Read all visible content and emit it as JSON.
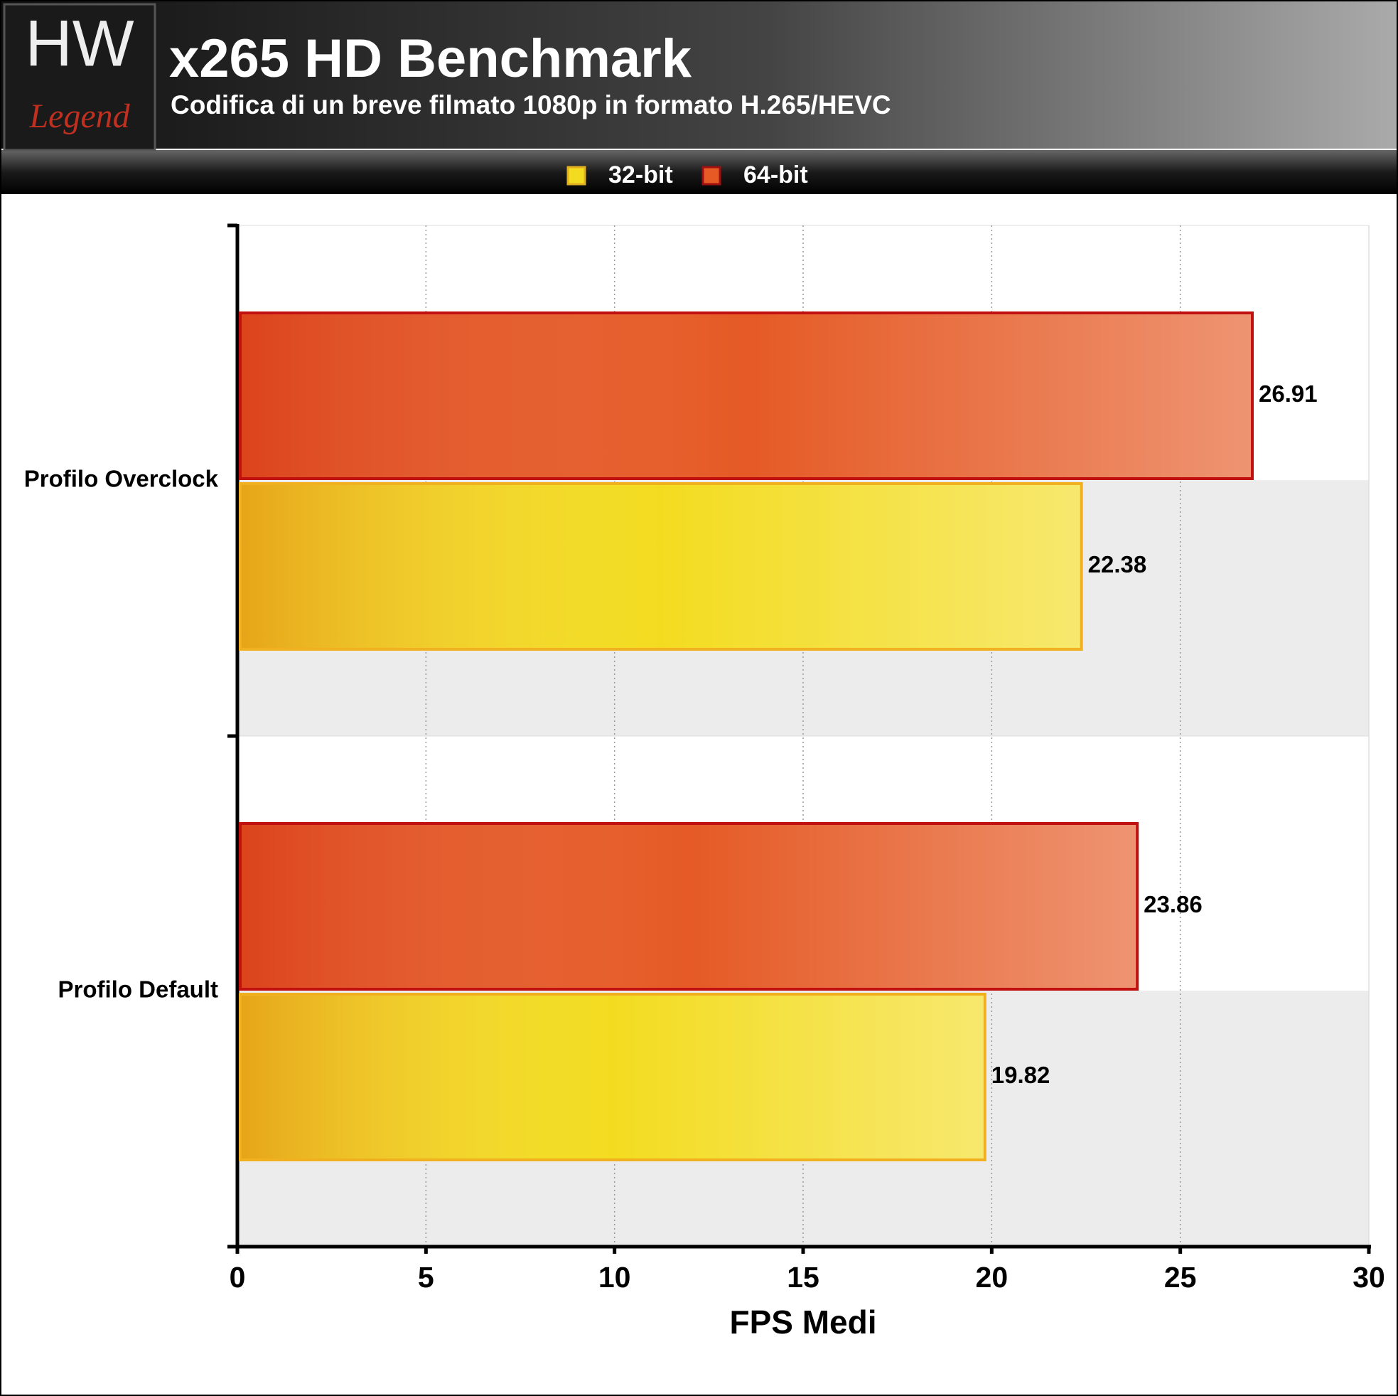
{
  "logo": {
    "top": "HW",
    "bottom": "Legend"
  },
  "chart_data": {
    "type": "barh",
    "title": "x265 HD Benchmark",
    "subtitle": "Codifica di un breve filmato 1080p in formato H.265/HEVC",
    "x_label": "FPS Medi",
    "categories": [
      "Profilo Overclock",
      "Profilo Default"
    ],
    "series": [
      {
        "name": "32-bit",
        "color": "#f3dc20",
        "values": [
          22.38,
          19.82
        ]
      },
      {
        "name": "64-bit",
        "color": "#e55a25",
        "values": [
          26.91,
          23.86
        ]
      }
    ],
    "xlim": [
      0,
      30
    ],
    "xticks": [
      0,
      5,
      10,
      15,
      20,
      25,
      30
    ],
    "grid": true
  }
}
